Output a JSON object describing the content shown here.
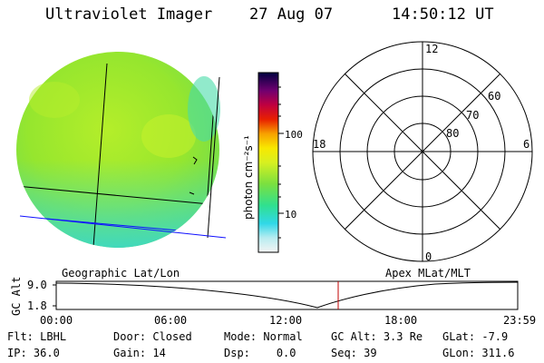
{
  "header": {
    "instrument": "Ultraviolet Imager",
    "date": "27 Aug 07",
    "time": "14:50:12 UT"
  },
  "colors": {
    "image_green": "#a8ea2a",
    "image_cyan": "#3ee0c0",
    "geo_grid": "#000000",
    "mag_grid": "#1010ff",
    "cursor": "#c00000"
  },
  "colorbar": {
    "unit_label": "photon cm⁻²s⁻¹",
    "tick_labels": [
      "100",
      "10"
    ]
  },
  "panels": {
    "left_caption": "Geographic Lat/Lon",
    "right_caption": "Apex MLat/MLT"
  },
  "polar": {
    "mlt_labels": {
      "top": "12",
      "left": "18",
      "right": "6",
      "bottom": "0"
    },
    "lat_labels": [
      "60",
      "70",
      "80"
    ]
  },
  "altitude_plot": {
    "axis_label": "GC Alt",
    "y_ticks": [
      "9.0",
      "1.8"
    ],
    "x_ticks": [
      "00:00",
      "06:00",
      "12:00",
      "18:00",
      "23:59"
    ]
  },
  "footer": [
    [
      {
        "key": "Flt:",
        "value": "LBHL"
      },
      {
        "key": "Door:",
        "value": "Closed"
      },
      {
        "key": "Mode:",
        "value": "Normal"
      },
      {
        "key": "GC Alt:",
        "value": "3.3 Re"
      },
      {
        "key": "GLat:",
        "value": "-7.9"
      }
    ],
    [
      {
        "key": "IP:",
        "value": "36.0"
      },
      {
        "key": "Gain:",
        "value": "14"
      },
      {
        "key": "Dsp:",
        "value": "0.0"
      },
      {
        "key": "Seq:",
        "value": "39"
      },
      {
        "key": "GLon:",
        "value": "311.6"
      }
    ]
  ]
}
